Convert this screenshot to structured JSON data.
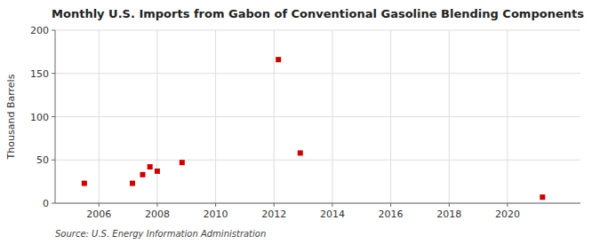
{
  "chart_data": {
    "type": "scatter",
    "title": "Monthly U.S. Imports from Gabon of Conventional Gasoline Blending Components",
    "ylabel": "Thousand Barrels",
    "source": "Source: U.S. Energy Information Administration",
    "x": [
      2005.5,
      2007.15,
      2007.5,
      2007.75,
      2008.0,
      2008.85,
      2012.15,
      2012.9,
      2021.2
    ],
    "values": [
      23,
      23,
      33,
      42,
      37,
      47,
      166,
      58,
      7
    ],
    "color": "#cc0000",
    "marker": "square",
    "xlim": [
      2004.5,
      2022.5
    ],
    "ylim": [
      0,
      200
    ],
    "xticks": [
      2006,
      2008,
      2010,
      2012,
      2014,
      2016,
      2018,
      2020
    ],
    "yticks": [
      0,
      50,
      100,
      150,
      200
    ],
    "grid": true
  }
}
